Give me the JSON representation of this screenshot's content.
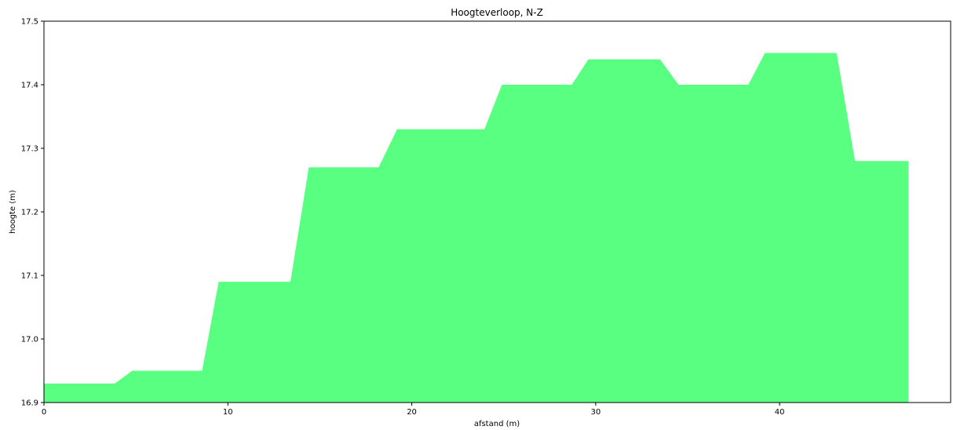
{
  "chart_data": {
    "type": "area",
    "title": "Hoogteverloop, N-Z",
    "xlabel": "afstand (m)",
    "ylabel": "hoogte (m)",
    "xlim": [
      0,
      49.3
    ],
    "ylim": [
      16.9,
      17.5
    ],
    "xticks": [
      0,
      10,
      20,
      30,
      40
    ],
    "yticks": [
      16.9,
      17.0,
      17.1,
      17.2,
      17.3,
      17.4,
      17.5
    ],
    "xtick_labels": [
      "0",
      "10",
      "20",
      "30",
      "40"
    ],
    "ytick_labels": [
      "16.9",
      "17.0",
      "17.1",
      "17.2",
      "17.3",
      "17.4",
      "17.5"
    ],
    "grid": false,
    "legend": "none",
    "fill_color": "#58ff80",
    "series": [
      {
        "x": [
          0,
          3.85,
          4.8,
          8.6,
          9.5,
          13.4,
          14.4,
          18.2,
          19.2,
          23.95,
          24.9,
          28.7,
          29.6,
          33.5,
          34.5,
          38.3,
          39.2,
          43.1,
          44.1,
          47.0
        ],
        "y": [
          16.93,
          16.93,
          16.95,
          16.95,
          17.09,
          17.09,
          17.27,
          17.27,
          17.33,
          17.33,
          17.4,
          17.4,
          17.44,
          17.44,
          17.4,
          17.4,
          17.45,
          17.45,
          17.28,
          17.28
        ]
      }
    ]
  }
}
